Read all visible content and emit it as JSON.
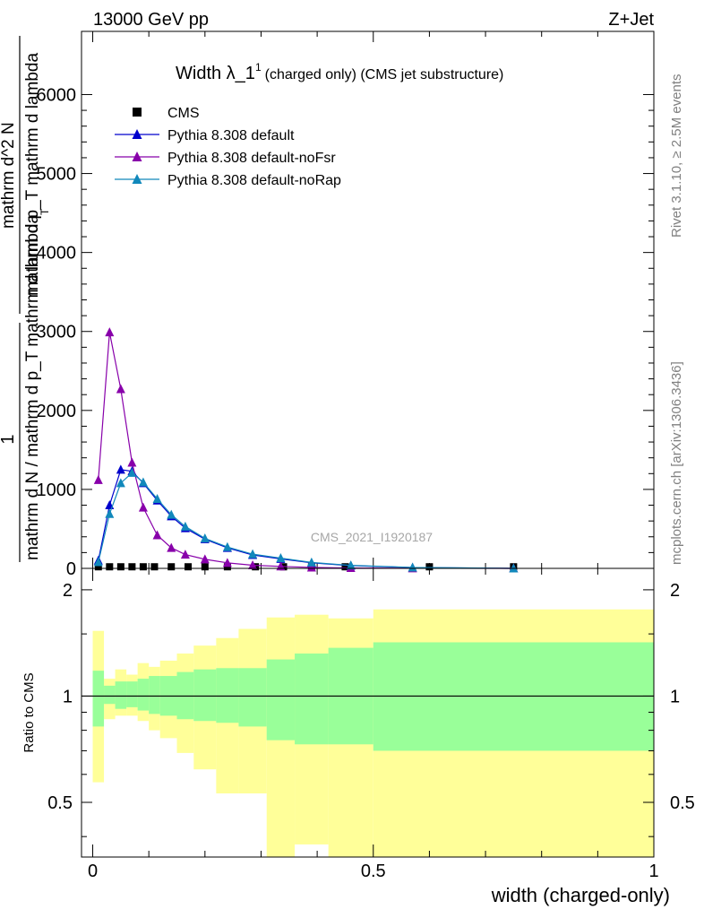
{
  "header": {
    "energy_label": "13000 GeV pp",
    "process_label": "Z+Jet"
  },
  "side_text": {
    "rivet": "Rivet 3.1.10, ≥ 2.5M events",
    "mcplots": "mcplots.cern.ch [arXiv:1306.3436]"
  },
  "watermark": "CMS_2021_I1920187",
  "chart_data": [
    {
      "type": "line",
      "title": "Width λ_1",
      "title_superscript": "1",
      "subtitle": "(charged only) (CMS jet substructure)",
      "ylabel_numerator": "1",
      "ylabel_denominator": "mathrm d N / mathrm d p_T mathrm d lambda",
      "ylabel_top_numerator": "mathrm d^2 N",
      "ylabel_top_denominator": "mathrm d p_T mathrm d lambda",
      "ylabel_top_subscript": "T",
      "xlim": [
        -0.02,
        1.0
      ],
      "ylim": [
        0,
        6800
      ],
      "yticks": [
        0,
        1000,
        2000,
        3000,
        4000,
        5000,
        6000
      ],
      "ytick_labels": [
        "0",
        "1000",
        "2000",
        "3000",
        "4000",
        "5000",
        "6000"
      ],
      "legend_position": "top-left",
      "series": [
        {
          "name": "CMS",
          "marker": "square",
          "color": "#000000",
          "x": [
            0.01,
            0.03,
            0.05,
            0.07,
            0.09,
            0.11,
            0.14,
            0.17,
            0.2,
            0.24,
            0.29,
            0.34,
            0.39,
            0.45,
            0.6,
            0.75
          ],
          "y": [
            20,
            20,
            20,
            20,
            20,
            20,
            20,
            20,
            20,
            20,
            20,
            20,
            20,
            20,
            20,
            20
          ]
        },
        {
          "name": "Pythia 8.308 default",
          "marker": "triangle",
          "color": "#0000cc",
          "x": [
            0.01,
            0.03,
            0.05,
            0.07,
            0.09,
            0.115,
            0.14,
            0.165,
            0.2,
            0.24,
            0.285,
            0.335,
            0.39,
            0.46,
            0.57,
            0.75
          ],
          "y": [
            100,
            800,
            1250,
            1230,
            1080,
            860,
            660,
            510,
            370,
            260,
            170,
            120,
            70,
            35,
            10,
            0
          ]
        },
        {
          "name": "Pythia 8.308 default-noFsr",
          "marker": "triangle",
          "color": "#8800aa",
          "x": [
            0.01,
            0.03,
            0.05,
            0.07,
            0.09,
            0.115,
            0.14,
            0.165,
            0.2,
            0.24,
            0.285,
            0.335,
            0.39,
            0.46,
            0.57,
            0.75
          ],
          "y": [
            1120,
            2990,
            2270,
            1340,
            770,
            420,
            260,
            175,
            115,
            70,
            40,
            25,
            12,
            5,
            2,
            0
          ]
        },
        {
          "name": "Pythia 8.308 default-noRap",
          "marker": "triangle",
          "color": "#1188bb",
          "x": [
            0.01,
            0.03,
            0.05,
            0.07,
            0.09,
            0.115,
            0.14,
            0.165,
            0.2,
            0.24,
            0.285,
            0.335,
            0.39,
            0.46,
            0.57,
            0.75
          ],
          "y": [
            80,
            690,
            1080,
            1210,
            1090,
            880,
            680,
            530,
            380,
            270,
            180,
            130,
            75,
            38,
            12,
            0
          ]
        }
      ]
    },
    {
      "type": "area",
      "ylabel": "Ratio to CMS",
      "xlabel": "width (charged-only)",
      "xlim": [
        -0.02,
        1.0
      ],
      "ylim": [
        0.35,
        2.3
      ],
      "xticks": [
        0,
        0.5,
        1
      ],
      "xtick_labels": [
        "0",
        "0.5",
        "1"
      ],
      "yticks": [
        0.5,
        1,
        2
      ],
      "ytick_labels": [
        "0.5",
        "1",
        "2"
      ],
      "reference_line": 1,
      "bin_edges": [
        0,
        0.02,
        0.04,
        0.06,
        0.08,
        0.1,
        0.12,
        0.15,
        0.18,
        0.22,
        0.26,
        0.31,
        0.36,
        0.42,
        0.5,
        1.0
      ],
      "stat_band": {
        "color": "#99ff99",
        "low": [
          0.82,
          0.95,
          0.92,
          0.93,
          0.91,
          0.89,
          0.88,
          0.86,
          0.85,
          0.84,
          0.82,
          0.75,
          0.73,
          0.73,
          0.7
        ],
        "high": [
          1.18,
          1.07,
          1.1,
          1.1,
          1.12,
          1.14,
          1.14,
          1.17,
          1.19,
          1.2,
          1.2,
          1.27,
          1.32,
          1.37,
          1.42
        ]
      },
      "syst_band": {
        "color": "#ffff99",
        "low": [
          0.57,
          0.86,
          0.88,
          0.88,
          0.85,
          0.8,
          0.76,
          0.69,
          0.62,
          0.53,
          0.53,
          0.34,
          0.38,
          0.34,
          0.34
        ],
        "high": [
          1.53,
          1.12,
          1.19,
          1.15,
          1.24,
          1.21,
          1.26,
          1.32,
          1.39,
          1.46,
          1.55,
          1.67,
          1.7,
          1.66,
          1.76
        ]
      }
    }
  ]
}
